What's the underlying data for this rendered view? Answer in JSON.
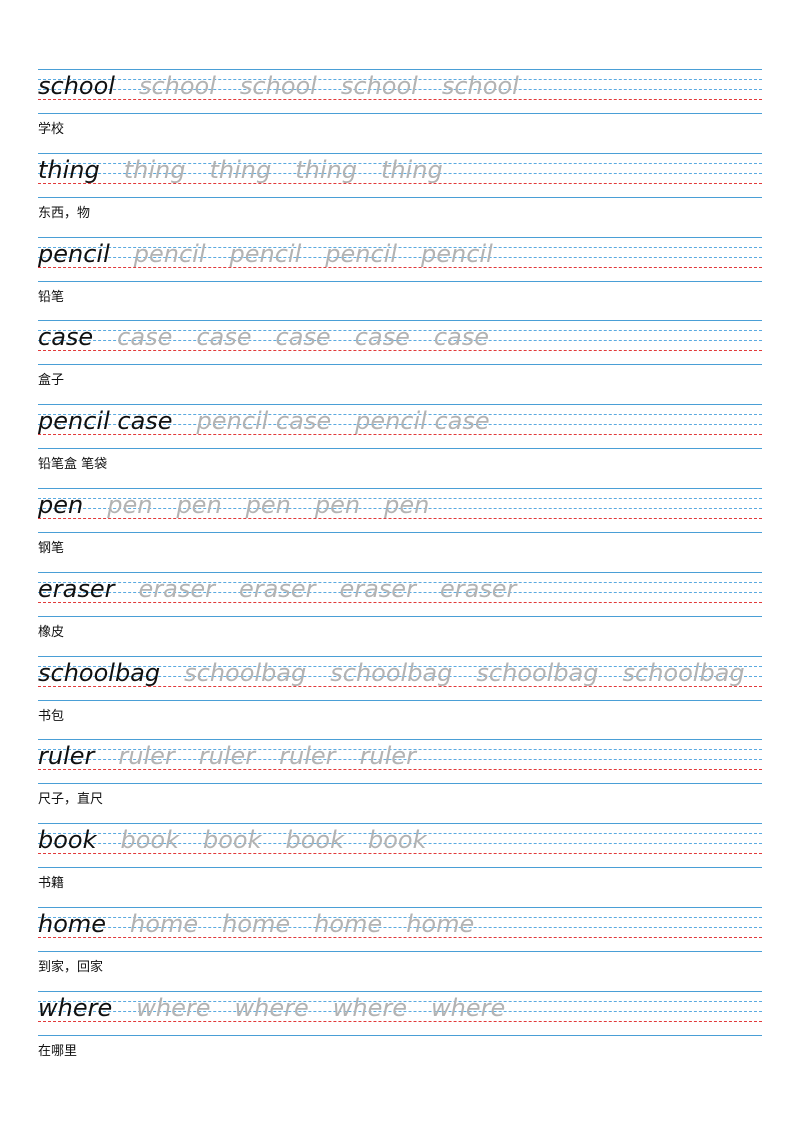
{
  "colors": {
    "rule": "#4a9fd6",
    "baseline": "#e23a3a",
    "trace": "#b3b3b3",
    "ink": "#111111"
  },
  "rows": [
    {
      "word": "school",
      "meaning": "学校",
      "traces": [
        "school",
        "school",
        "school",
        "school"
      ]
    },
    {
      "word": "thing",
      "meaning": "东西，物",
      "traces": [
        "thing",
        "thing",
        "thing",
        "thing"
      ]
    },
    {
      "word": "pencil",
      "meaning": "铅笔",
      "traces": [
        "pencil",
        "pencil",
        "pencil",
        "pencil"
      ]
    },
    {
      "word": "case",
      "meaning": "盒子",
      "traces": [
        "case",
        "case",
        "case",
        "case",
        "case"
      ]
    },
    {
      "word": "pencil case",
      "meaning": "铅笔盒 笔袋",
      "traces": [
        "pencil case",
        "pencil case"
      ]
    },
    {
      "word": "pen",
      "meaning": "钢笔",
      "traces": [
        "pen",
        "pen",
        "pen",
        "pen",
        "pen"
      ]
    },
    {
      "word": "eraser",
      "meaning": "橡皮",
      "traces": [
        "eraser",
        "eraser",
        "eraser",
        "eraser"
      ]
    },
    {
      "word": "schoolbag",
      "meaning": "书包",
      "traces": [
        "schoolbag",
        "schoolbag",
        "schoolbag",
        "schoolbag"
      ]
    },
    {
      "word": "ruler",
      "meaning": "尺子，直尺",
      "traces": [
        "ruler",
        "ruler",
        "ruler",
        "ruler"
      ]
    },
    {
      "word": "book",
      "meaning": "书籍",
      "traces": [
        "book",
        "book",
        "book",
        "book"
      ]
    },
    {
      "word": "home",
      "meaning": "到家，回家",
      "traces": [
        "home",
        "home",
        "home",
        "home"
      ]
    },
    {
      "word": "where",
      "meaning": "在哪里",
      "traces": [
        "where",
        "where",
        "where",
        "where"
      ]
    }
  ]
}
